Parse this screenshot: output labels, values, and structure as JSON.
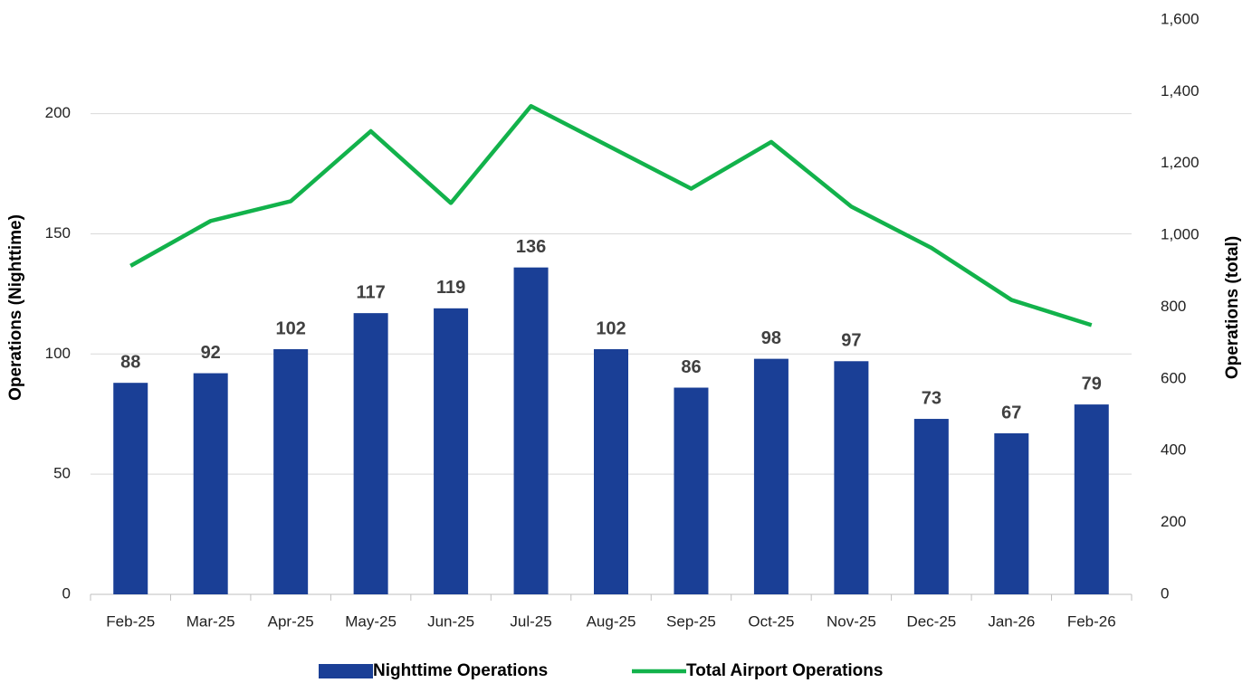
{
  "chart_data": {
    "type": "bar",
    "categories": [
      "Feb-25",
      "Mar-25",
      "Apr-25",
      "May-25",
      "Jun-25",
      "Jul-25",
      "Aug-25",
      "Sep-25",
      "Oct-25",
      "Nov-25",
      "Dec-25",
      "Jan-26",
      "Feb-26"
    ],
    "series": [
      {
        "name": "Nighttime Operations",
        "type": "bar",
        "color": "#1a3f96",
        "values": [
          88,
          92,
          102,
          117,
          119,
          136,
          102,
          86,
          98,
          97,
          73,
          67,
          79
        ]
      },
      {
        "name": "Total Airport Operations",
        "type": "line",
        "axis": "y2",
        "color": "#12b24b",
        "values": [
          915,
          1040,
          1095,
          1290,
          1090,
          1360,
          1245,
          1130,
          1260,
          1080,
          965,
          820,
          750
        ]
      }
    ],
    "ylabel": "Operations (Nighttime)",
    "y2label": "Operations (total)",
    "ylim": [
      0,
      239
    ],
    "yticks": [
      0,
      50,
      100,
      150,
      200
    ],
    "y2lim": [
      0,
      1600
    ],
    "y2ticks": [
      0,
      200,
      400,
      600,
      800,
      {
        "value": 1000,
        "label": "1,000"
      },
      {
        "value": 1200,
        "label": "1,200"
      },
      {
        "value": 1400,
        "label": "1,400"
      },
      {
        "value": 1600,
        "label": "1,600"
      }
    ],
    "grid": true,
    "legend": "bottom"
  }
}
